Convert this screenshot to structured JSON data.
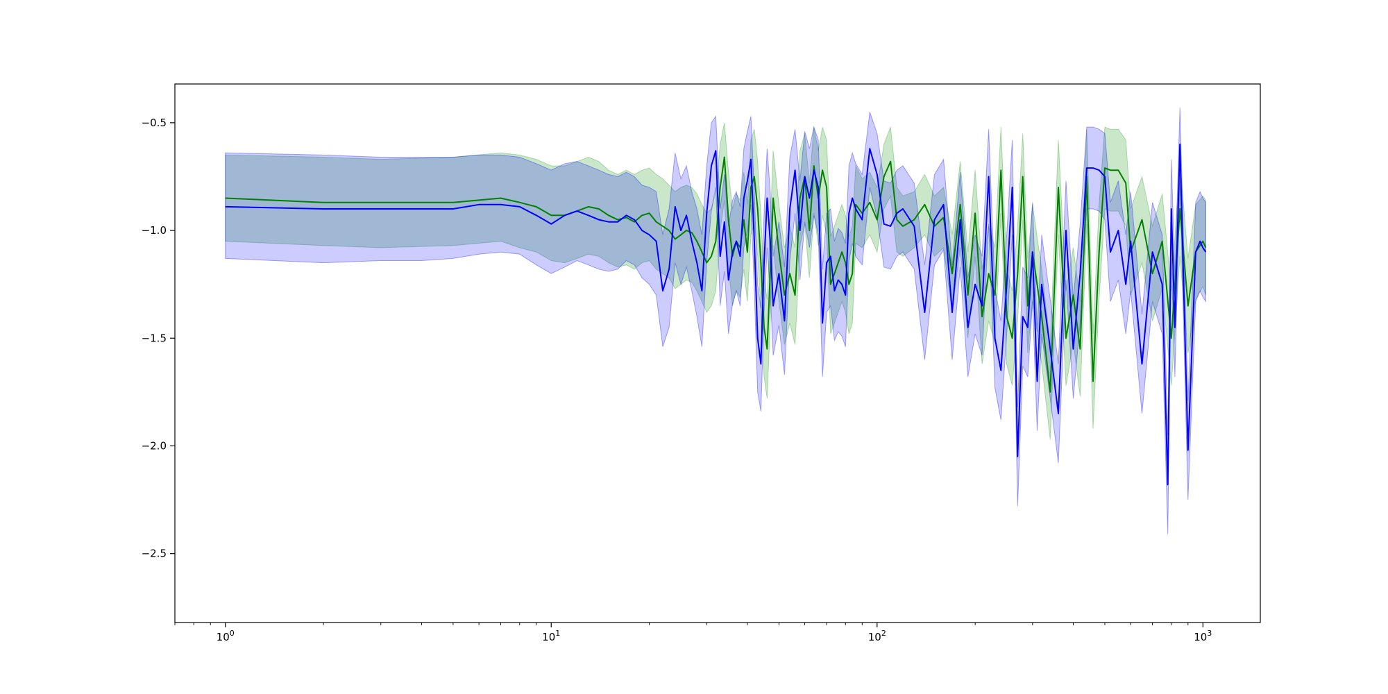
{
  "chart_data": {
    "type": "line",
    "title": "",
    "xlabel": "",
    "ylabel": "",
    "x_scale": "log",
    "xlim": [
      0.7,
      1500
    ],
    "ylim": [
      -2.82,
      -0.32
    ],
    "grid": false,
    "legend": "none",
    "x_ticks": [
      {
        "value": 1,
        "mantissa": "10",
        "exp": "0"
      },
      {
        "value": 10,
        "mantissa": "10",
        "exp": "1"
      },
      {
        "value": 100,
        "mantissa": "10",
        "exp": "2"
      },
      {
        "value": 1000,
        "mantissa": "10",
        "exp": "3"
      }
    ],
    "y_ticks": [
      {
        "value": -0.5,
        "label": "−0.5"
      },
      {
        "value": -1.0,
        "label": "−1.0"
      },
      {
        "value": -1.5,
        "label": "−1.5"
      },
      {
        "value": -2.0,
        "label": "−2.0"
      },
      {
        "value": -2.5,
        "label": "−2.5"
      }
    ],
    "series": [
      {
        "color": "#008000",
        "band_color": "#2ca02c",
        "band_opacity": 0.25,
        "x": [
          1,
          2,
          3,
          5,
          7,
          8,
          9,
          10,
          11,
          12,
          13,
          14,
          15,
          16,
          17,
          18,
          19,
          20,
          21,
          22,
          23,
          24,
          25,
          26,
          27,
          28,
          29,
          30,
          31,
          32,
          33,
          34,
          35,
          36,
          37,
          38,
          39,
          40,
          41,
          42,
          43,
          44,
          45,
          46,
          47,
          48,
          50,
          52,
          54,
          56,
          58,
          60,
          62,
          64,
          66,
          68,
          70,
          72,
          74,
          76,
          78,
          80,
          82,
          84,
          86,
          90,
          95,
          100,
          105,
          110,
          115,
          120,
          130,
          140,
          150,
          160,
          170,
          180,
          190,
          200,
          210,
          220,
          230,
          240,
          250,
          260,
          270,
          280,
          290,
          300,
          320,
          340,
          360,
          380,
          400,
          420,
          440,
          460,
          480,
          500,
          520,
          550,
          580,
          600,
          650,
          700,
          750,
          800,
          850,
          900,
          950,
          1000,
          1020
        ],
        "mean": [
          -0.85,
          -0.87,
          -0.87,
          -0.87,
          -0.85,
          -0.87,
          -0.89,
          -0.93,
          -0.93,
          -0.91,
          -0.89,
          -0.9,
          -0.93,
          -0.95,
          -0.94,
          -0.96,
          -0.93,
          -0.92,
          -0.96,
          -0.98,
          -1.0,
          -1.04,
          -1.02,
          -1.0,
          -1.01,
          -1.05,
          -1.1,
          -1.15,
          -1.12,
          -1.05,
          -0.8,
          -0.66,
          -0.95,
          -1.12,
          -1.05,
          -1.08,
          -0.95,
          -1.1,
          -0.8,
          -0.75,
          -0.9,
          -1.15,
          -1.45,
          -1.55,
          -1.2,
          -0.85,
          -1.1,
          -1.3,
          -1.2,
          -1.3,
          -0.85,
          -0.75,
          -1.0,
          -0.7,
          -0.85,
          -0.72,
          -0.8,
          -1.25,
          -1.2,
          -1.15,
          -1.1,
          -1.15,
          -1.25,
          -1.2,
          -0.88,
          -0.92,
          -0.87,
          -0.95,
          -0.75,
          -0.68,
          -0.95,
          -0.98,
          -0.95,
          -0.88,
          -0.98,
          -0.94,
          -1.2,
          -0.88,
          -1.3,
          -0.92,
          -1.4,
          -1.2,
          -1.3,
          -0.72,
          -1.4,
          -1.5,
          -1.2,
          -0.75,
          -1.35,
          -1.1,
          -1.4,
          -1.75,
          -0.8,
          -1.5,
          -1.3,
          -1.55,
          -0.75,
          -1.7,
          -1.1,
          -0.71,
          -0.72,
          -0.72,
          -0.78,
          -1.1,
          -0.95,
          -1.2,
          -1.05,
          -1.5,
          -0.9,
          -1.35,
          -1.1,
          -1.05,
          -1.08
        ],
        "upper": [
          -0.65,
          -0.66,
          -0.67,
          -0.66,
          -0.64,
          -0.65,
          -0.67,
          -0.7,
          -0.7,
          -0.68,
          -0.66,
          -0.68,
          -0.72,
          -0.74,
          -0.72,
          -0.74,
          -0.72,
          -0.71,
          -0.74,
          -0.76,
          -0.79,
          -0.82,
          -0.8,
          -0.79,
          -0.8,
          -0.83,
          -0.88,
          -0.92,
          -0.9,
          -0.82,
          -0.6,
          -0.5,
          -0.73,
          -0.9,
          -0.83,
          -0.86,
          -0.73,
          -0.88,
          -0.58,
          -0.53,
          -0.68,
          -0.93,
          -1.22,
          -1.32,
          -0.98,
          -0.63,
          -0.88,
          -1.08,
          -0.98,
          -1.08,
          -0.63,
          -0.55,
          -0.78,
          -0.52,
          -0.63,
          -0.52,
          -0.58,
          -1.03,
          -0.98,
          -0.93,
          -0.88,
          -0.93,
          -1.03,
          -0.98,
          -0.7,
          -0.76,
          -0.73,
          -0.8,
          -0.6,
          -0.52,
          -0.8,
          -0.84,
          -0.82,
          -0.74,
          -0.84,
          -0.8,
          -1.02,
          -0.68,
          -1.1,
          -0.72,
          -1.18,
          -0.98,
          -1.08,
          -0.52,
          -1.18,
          -1.28,
          -0.98,
          -0.55,
          -1.13,
          -0.88,
          -1.18,
          -1.53,
          -0.58,
          -1.28,
          -1.08,
          -1.33,
          -0.53,
          -1.48,
          -0.88,
          -0.52,
          -0.53,
          -0.53,
          -0.58,
          -0.9,
          -0.75,
          -0.98,
          -0.83,
          -1.28,
          -0.68,
          -1.13,
          -0.88,
          -0.84,
          -0.86
        ],
        "lower": [
          -1.05,
          -1.07,
          -1.08,
          -1.07,
          -1.05,
          -1.08,
          -1.1,
          -1.14,
          -1.15,
          -1.13,
          -1.11,
          -1.12,
          -1.15,
          -1.17,
          -1.16,
          -1.18,
          -1.15,
          -1.14,
          -1.18,
          -1.2,
          -1.22,
          -1.27,
          -1.25,
          -1.23,
          -1.24,
          -1.28,
          -1.33,
          -1.38,
          -1.35,
          -1.28,
          -1.0,
          -0.86,
          -1.17,
          -1.35,
          -1.28,
          -1.31,
          -1.18,
          -1.33,
          -1.02,
          -0.97,
          -1.12,
          -1.38,
          -1.68,
          -1.78,
          -1.43,
          -1.07,
          -1.33,
          -1.53,
          -1.43,
          -1.53,
          -1.07,
          -0.97,
          -1.22,
          -0.92,
          -1.07,
          -0.93,
          -1.02,
          -1.48,
          -1.43,
          -1.38,
          -1.33,
          -1.38,
          -1.48,
          -1.43,
          -1.06,
          -1.08,
          -1.02,
          -1.1,
          -0.9,
          -0.84,
          -1.1,
          -1.12,
          -1.08,
          -1.02,
          -1.12,
          -1.08,
          -1.38,
          -1.08,
          -1.5,
          -1.12,
          -1.62,
          -1.42,
          -1.52,
          -0.92,
          -1.62,
          -1.72,
          -1.42,
          -0.95,
          -1.57,
          -1.32,
          -1.62,
          -1.97,
          -1.02,
          -1.72,
          -1.52,
          -1.77,
          -0.97,
          -1.92,
          -1.32,
          -0.9,
          -0.91,
          -0.91,
          -0.98,
          -1.3,
          -1.15,
          -1.42,
          -1.27,
          -1.72,
          -1.12,
          -1.57,
          -1.32,
          -1.26,
          -1.3
        ]
      },
      {
        "color": "#0000ff",
        "band_color": "#0000ff",
        "band_opacity": 0.2,
        "x": [
          1,
          2,
          3,
          4,
          5,
          6,
          7,
          8,
          9,
          10,
          11,
          12,
          13,
          14,
          15,
          16,
          17,
          18,
          19,
          20,
          21,
          22,
          23,
          24,
          25,
          26,
          27,
          28,
          29,
          30,
          31,
          32,
          33,
          34,
          35,
          36,
          37,
          38,
          39,
          40,
          41,
          42,
          43,
          44,
          45,
          46,
          47,
          48,
          50,
          52,
          54,
          56,
          58,
          60,
          62,
          64,
          66,
          68,
          70,
          72,
          74,
          76,
          78,
          80,
          82,
          84,
          86,
          90,
          95,
          100,
          105,
          110,
          115,
          120,
          130,
          140,
          150,
          160,
          170,
          180,
          190,
          200,
          210,
          220,
          230,
          240,
          250,
          260,
          270,
          280,
          290,
          300,
          310,
          320,
          340,
          360,
          380,
          400,
          420,
          440,
          460,
          480,
          500,
          520,
          550,
          580,
          600,
          650,
          700,
          750,
          780,
          800,
          820,
          850,
          900,
          950,
          980,
          1000,
          1020
        ],
        "mean": [
          -0.89,
          -0.9,
          -0.9,
          -0.9,
          -0.9,
          -0.88,
          -0.88,
          -0.89,
          -0.93,
          -0.97,
          -0.93,
          -0.91,
          -0.93,
          -0.95,
          -0.96,
          -0.96,
          -0.93,
          -0.95,
          -1.0,
          -1.02,
          -1.05,
          -1.28,
          -1.18,
          -0.89,
          -1.0,
          -0.93,
          -1.05,
          -1.15,
          -1.28,
          -0.92,
          -0.7,
          -0.63,
          -1.12,
          -0.96,
          -1.23,
          -1.1,
          -1.05,
          -1.12,
          -0.85,
          -0.77,
          -0.67,
          -1.05,
          -1.5,
          -1.62,
          -1.15,
          -0.85,
          -1.05,
          -1.35,
          -1.2,
          -1.42,
          -0.9,
          -0.72,
          -1.0,
          -0.75,
          -0.85,
          -0.72,
          -0.8,
          -1.43,
          -1.15,
          -1.12,
          -1.28,
          -1.23,
          -1.25,
          -1.3,
          -0.92,
          -0.85,
          -0.9,
          -0.95,
          -0.62,
          -0.74,
          -0.97,
          -0.98,
          -0.92,
          -0.9,
          -0.98,
          -1.38,
          -0.95,
          -0.88,
          -1.38,
          -0.95,
          -1.45,
          -1.25,
          -1.35,
          -0.75,
          -1.5,
          -1.65,
          -1.25,
          -0.8,
          -2.05,
          -1.4,
          -1.45,
          -1.1,
          -1.7,
          -1.25,
          -1.55,
          -1.85,
          -1.0,
          -1.55,
          -1.2,
          -0.71,
          -0.71,
          -0.72,
          -0.75,
          -1.1,
          -1.0,
          -1.25,
          -1.05,
          -1.62,
          -1.1,
          -1.25,
          -2.18,
          -0.9,
          -1.45,
          -0.6,
          -2.02,
          -1.1,
          -1.05,
          -1.08,
          -1.1
        ],
        "upper": [
          -0.64,
          -0.65,
          -0.66,
          -0.66,
          -0.66,
          -0.65,
          -0.65,
          -0.66,
          -0.69,
          -0.72,
          -0.69,
          -0.68,
          -0.7,
          -0.72,
          -0.74,
          -0.75,
          -0.73,
          -0.75,
          -0.79,
          -0.8,
          -0.82,
          -1.02,
          -0.9,
          -0.64,
          -0.76,
          -0.7,
          -0.82,
          -0.9,
          -1.02,
          -0.7,
          -0.5,
          -0.47,
          -0.9,
          -0.74,
          -0.98,
          -0.86,
          -0.82,
          -0.89,
          -0.62,
          -0.54,
          -0.47,
          -0.82,
          -1.25,
          -1.36,
          -0.92,
          -0.62,
          -0.82,
          -1.12,
          -0.96,
          -1.17,
          -0.66,
          -0.53,
          -0.77,
          -0.54,
          -0.62,
          -0.52,
          -0.58,
          -1.18,
          -0.92,
          -0.9,
          -1.05,
          -0.99,
          -1.01,
          -1.06,
          -0.7,
          -0.64,
          -0.69,
          -0.74,
          -0.45,
          -0.55,
          -0.77,
          -0.78,
          -0.72,
          -0.7,
          -0.78,
          -1.16,
          -0.74,
          -0.67,
          -1.16,
          -0.73,
          -1.22,
          -1.02,
          -1.12,
          -0.53,
          -1.27,
          -1.42,
          -1.02,
          -0.58,
          -1.82,
          -1.17,
          -1.22,
          -0.87,
          -1.47,
          -1.02,
          -1.32,
          -1.62,
          -0.77,
          -1.32,
          -0.97,
          -0.52,
          -0.52,
          -0.53,
          -0.55,
          -0.87,
          -0.77,
          -1.02,
          -0.82,
          -1.39,
          -0.87,
          -1.02,
          -1.95,
          -0.67,
          -1.22,
          -0.43,
          -1.79,
          -0.87,
          -0.82,
          -0.85,
          -0.87
        ],
        "lower": [
          -1.13,
          -1.15,
          -1.14,
          -1.14,
          -1.13,
          -1.11,
          -1.1,
          -1.11,
          -1.16,
          -1.2,
          -1.17,
          -1.14,
          -1.16,
          -1.18,
          -1.19,
          -1.18,
          -1.14,
          -1.16,
          -1.22,
          -1.25,
          -1.3,
          -1.54,
          -1.45,
          -1.15,
          -1.25,
          -1.17,
          -1.28,
          -1.4,
          -1.54,
          -1.15,
          -0.91,
          -0.8,
          -1.35,
          -1.19,
          -1.48,
          -1.34,
          -1.28,
          -1.35,
          -1.08,
          -1.0,
          -0.88,
          -1.28,
          -1.75,
          -1.84,
          -1.38,
          -1.08,
          -1.28,
          -1.58,
          -1.44,
          -1.67,
          -1.14,
          -0.92,
          -1.23,
          -0.96,
          -1.08,
          -0.93,
          -1.02,
          -1.68,
          -1.38,
          -1.35,
          -1.51,
          -1.47,
          -1.49,
          -1.54,
          -1.14,
          -1.06,
          -1.12,
          -1.16,
          -0.8,
          -0.94,
          -1.17,
          -1.18,
          -1.12,
          -1.1,
          -1.18,
          -1.6,
          -1.16,
          -1.09,
          -1.6,
          -1.17,
          -1.68,
          -1.48,
          -1.58,
          -0.97,
          -1.73,
          -1.88,
          -1.48,
          -1.02,
          -2.28,
          -1.63,
          -1.68,
          -1.33,
          -1.93,
          -1.48,
          -1.78,
          -2.08,
          -1.23,
          -1.78,
          -1.43,
          -0.9,
          -0.9,
          -0.91,
          -0.95,
          -1.33,
          -1.23,
          -1.48,
          -1.28,
          -1.85,
          -1.33,
          -1.48,
          -2.41,
          -1.13,
          -1.68,
          -0.77,
          -2.25,
          -1.33,
          -1.28,
          -1.31,
          -1.33
        ]
      }
    ]
  }
}
